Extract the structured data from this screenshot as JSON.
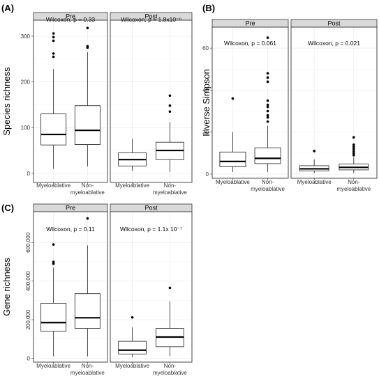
{
  "figure_panels": [
    {
      "panel_label": "(A)",
      "ylabel": "Species richness",
      "ylim": [
        -20,
        335
      ],
      "yticks": [
        0,
        100,
        200,
        300
      ],
      "ytick_labels": [
        "0",
        "100",
        "200",
        "300"
      ],
      "facets": [
        {
          "strip": "Pre",
          "annotation": "Wilcoxon, p = 0.33",
          "boxes": [
            {
              "label": "Myeloablative",
              "min": 10,
              "q1": 62,
              "median": 85,
              "q3": 130,
              "max": 228,
              "outliers": [
                255,
                262,
                290,
                298,
                306
              ]
            },
            {
              "label": "Non-\nmyeloablative",
              "min": 15,
              "q1": 63,
              "median": 94,
              "q3": 148,
              "max": 265,
              "outliers": [
                275,
                278,
                318
              ]
            }
          ]
        },
        {
          "strip": "Post",
          "annotation": "Wilcoxon, p = 1.8x10⁻⁶",
          "boxes": [
            {
              "label": "Myeloablative",
              "min": 5,
              "q1": 16,
              "median": 30,
              "q3": 45,
              "max": 75,
              "outliers": []
            },
            {
              "label": "Non-\nmyeloablative",
              "min": 3,
              "q1": 30,
              "median": 50,
              "q3": 68,
              "max": 112,
              "outliers": [
                135,
                148,
                170
              ]
            }
          ]
        }
      ]
    },
    {
      "panel_label": "(B)",
      "ylabel": "Inverse Simpson",
      "ylim": [
        -2,
        70
      ],
      "yticks": [
        0,
        20,
        40,
        60
      ],
      "ytick_labels": [
        "0",
        "20",
        "40",
        "60"
      ],
      "facets": [
        {
          "strip": "Pre",
          "annotation": "Wilcoxon, p = 0.061",
          "boxes": [
            {
              "label": "Myeloablative",
              "min": 1,
              "q1": 3.5,
              "median": 6,
              "q3": 10.5,
              "max": 20,
              "outliers": [
                36
              ]
            },
            {
              "label": "Non-\nmyeloablative",
              "min": 1,
              "q1": 5,
              "median": 7.5,
              "q3": 12.5,
              "max": 23,
              "outliers": [
                25,
                27,
                28,
                30,
                32,
                33,
                35,
                44,
                46,
                48,
                65
              ]
            }
          ]
        },
        {
          "strip": "Post",
          "annotation": "Wilcoxon, p = 0.021",
          "boxes": [
            {
              "label": "Myeloablative",
              "min": 0.5,
              "q1": 1.5,
              "median": 2.5,
              "q3": 4,
              "max": 7,
              "outliers": [
                11
              ]
            },
            {
              "label": "Non-\nmyeloablative",
              "min": 0.5,
              "q1": 2,
              "median": 3.2,
              "q3": 4.8,
              "max": 8,
              "outliers": [
                9,
                10,
                11,
                12,
                13,
                14,
                17.5
              ]
            }
          ]
        }
      ]
    },
    {
      "panel_label": "(C)",
      "ylabel": "Gene richness",
      "ylim": [
        -20000,
        760000
      ],
      "yticks": [
        0,
        200000,
        400000,
        600000
      ],
      "ytick_labels": [
        "0",
        "200,000",
        "400,000",
        "600,000"
      ],
      "facets": [
        {
          "strip": "Pre",
          "annotation": "Wilcoxon, p = 0.11",
          "boxes": [
            {
              "label": "Myeloablative",
              "min": 10000,
              "q1": 140000,
              "median": 185000,
              "q3": 285000,
              "max": 470000,
              "outliers": [
                490000,
                500000,
                590000
              ]
            },
            {
              "label": "Non-\nmyeloablative",
              "min": 10000,
              "q1": 155000,
              "median": 210000,
              "q3": 335000,
              "max": 585000,
              "outliers": [
                725000
              ]
            }
          ]
        },
        {
          "strip": "Post",
          "annotation": "Wilcoxon, p = 1.1x 10⁻⁷",
          "boxes": [
            {
              "label": "Myeloablative",
              "min": 5000,
              "q1": 22000,
              "median": 42000,
              "q3": 88000,
              "max": 160000,
              "outliers": [
                212000
              ]
            },
            {
              "label": "Non-\nmyeloablative",
              "min": 10000,
              "q1": 60000,
              "median": 110000,
              "q3": 155000,
              "max": 295000,
              "outliers": [
                365000
              ]
            }
          ]
        }
      ]
    }
  ],
  "chart_data": [
    {
      "type": "box",
      "title": "",
      "ylabel": "Species richness",
      "ylim": [
        -20,
        335
      ],
      "facets": [
        "Pre",
        "Post"
      ],
      "categories": [
        "Myeloablative",
        "Non-myeloablative"
      ],
      "annotations": [
        "Wilcoxon, p = 0.33",
        "Wilcoxon, p = 1.8x10⁻⁶"
      ]
    },
    {
      "type": "box",
      "title": "",
      "ylabel": "Inverse Simpson",
      "ylim": [
        -2,
        70
      ],
      "facets": [
        "Pre",
        "Post"
      ],
      "categories": [
        "Myeloablative",
        "Non-myeloablative"
      ],
      "annotations": [
        "Wilcoxon, p = 0.061",
        "Wilcoxon, p = 0.021"
      ]
    },
    {
      "type": "box",
      "title": "",
      "ylabel": "Gene richness",
      "ylim": [
        -20000,
        760000
      ],
      "facets": [
        "Pre",
        "Post"
      ],
      "categories": [
        "Myeloablative",
        "Non-myeloablative"
      ],
      "annotations": [
        "Wilcoxon, p = 0.11",
        "Wilcoxon, p = 1.1x 10⁻⁷"
      ]
    }
  ],
  "colors": {
    "strip_fill": "#d9d9d9",
    "panel_border": "#333333",
    "grid": "#ebebeb",
    "box_fill": "#ffffff",
    "box_line": "#333333"
  }
}
